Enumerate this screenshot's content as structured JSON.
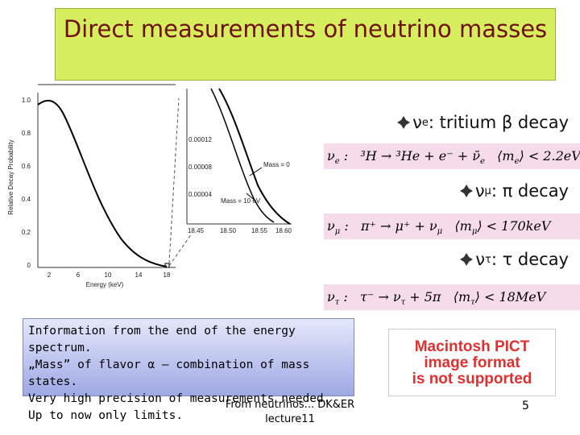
{
  "title": "Direct measurements of neutrino masses",
  "plot": {
    "y_label": "Relative Decay Probability",
    "x_label": "Energy (keV)",
    "x_ticks": [
      "2",
      "6",
      "10",
      "14",
      "18"
    ],
    "y_ticks": [
      "1.0",
      "0.8",
      "0.6",
      "0.4",
      "0.2",
      "0"
    ],
    "inset": {
      "y_ticks": [
        "0.00012",
        "0.00008",
        "0.00004"
      ],
      "x_ticks": [
        "18.45",
        "18.50",
        "18.55",
        "18.60"
      ],
      "labels": [
        "Mass = 0",
        "Mass = 10 eV"
      ]
    }
  },
  "bullets": [
    {
      "nu": "ν",
      "sub": "e",
      "text": ": tritium β decay",
      "formula": [
        {
          "text": "ν"
        },
        {
          "text": "e",
          "sub": true
        },
        {
          "text": " :   ³H → ³He + e⁻ + ν̄"
        },
        {
          "text": "e",
          "sub": true
        },
        {
          "text": "   ⟨m"
        },
        {
          "text": "e",
          "sub": true
        },
        {
          "text": "⟩ < 2.2eV"
        }
      ]
    },
    {
      "nu": "ν",
      "sub": "μ",
      "text": ": π decay",
      "formula": [
        {
          "text": "ν"
        },
        {
          "text": "μ",
          "sub": true
        },
        {
          "text": " :   π⁺ → μ⁺ + ν"
        },
        {
          "text": "μ",
          "sub": true
        },
        {
          "text": "   ⟨m"
        },
        {
          "text": "μ",
          "sub": true
        },
        {
          "text": "⟩ < 170keV"
        }
      ]
    },
    {
      "nu": "ν",
      "sub": "τ",
      "text": ": τ decay",
      "formula": [
        {
          "text": "ν"
        },
        {
          "text": "τ",
          "sub": true
        },
        {
          "text": " :   τ⁻ → ν"
        },
        {
          "text": "τ",
          "sub": true
        },
        {
          "text": " + 5π   ⟨m"
        },
        {
          "text": "τ",
          "sub": true
        },
        {
          "text": "⟩ < 18MeV"
        }
      ]
    }
  ],
  "info": [
    "Information from the end of the energy spectrum.",
    "„Mass” of flavor α – combination of mass states.",
    "Very high precision of measurements needed.",
    "Up to now only limits."
  ],
  "pict": [
    "Macintosh PICT",
    "image format",
    "is not supported"
  ],
  "footer": [
    "From neutrinos... DK&ER",
    "lecture11"
  ],
  "page_number": "5"
}
